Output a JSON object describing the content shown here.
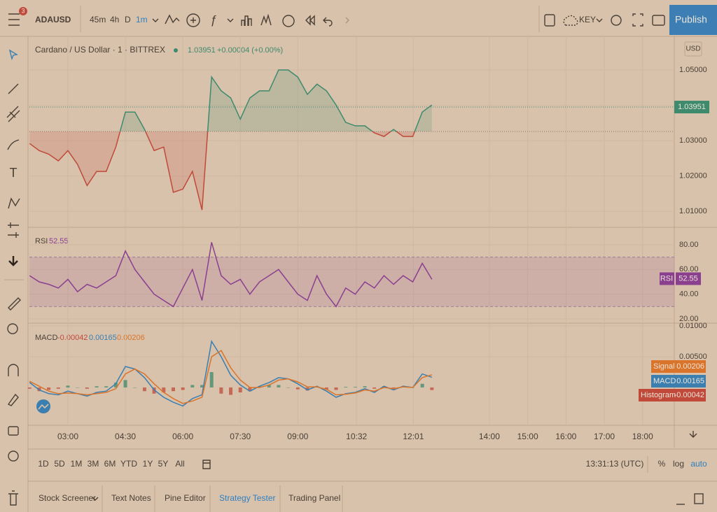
{
  "header": {
    "badge": "3",
    "symbol": "ADAUSD",
    "intervals": [
      "45m",
      "4h",
      "D",
      "1m"
    ],
    "layout": "KEY",
    "publish": "Publish"
  },
  "chart_data": [
    {
      "type": "line",
      "title": "Cardano / US Dollar · 1 · BITTREX",
      "last_value": 1.03951,
      "change": "+0.00004 (+0.00%)",
      "currency": "USD",
      "x": [
        120,
        135,
        150,
        165,
        180,
        195,
        210,
        225,
        240,
        255,
        270,
        285,
        300,
        315,
        330,
        345,
        360,
        375,
        390,
        405,
        420,
        435,
        450,
        465,
        480,
        495,
        510,
        525,
        540,
        555,
        570,
        585,
        600,
        615,
        630,
        645,
        660,
        675,
        690,
        705,
        720,
        735,
        750
      ],
      "values": [
        1.0292,
        1.0272,
        1.0262,
        1.0243,
        1.0272,
        1.0233,
        1.0173,
        1.0213,
        1.0213,
        1.0282,
        1.0381,
        1.0381,
        1.0332,
        1.0272,
        1.0282,
        1.0154,
        1.0163,
        1.0213,
        1.0104,
        1.048,
        1.0441,
        1.0421,
        1.0361,
        1.0421,
        1.0441,
        1.0441,
        1.05,
        1.05,
        1.048,
        1.0431,
        1.046,
        1.0441,
        1.0401,
        1.0352,
        1.0342,
        1.0342,
        1.0322,
        1.0312,
        1.0332,
        1.0312,
        1.0312,
        1.0381,
        1.0401
      ],
      "baseline": 1.0326,
      "color_up": "#3d8a6c",
      "color_down": "#c0493a",
      "xlim": [
        119.7,
        1129.6
      ],
      "xticks": [
        {
          "value": 180,
          "label": "03:00"
        },
        {
          "value": 270,
          "label": "04:30"
        },
        {
          "value": 360,
          "label": "06:00"
        },
        {
          "value": 450,
          "label": "07:30"
        },
        {
          "value": 540,
          "label": "09:00"
        },
        {
          "value": 632,
          "label": "10:32"
        },
        {
          "value": 721,
          "label": "12:01"
        },
        {
          "value": 840,
          "label": "14:00"
        },
        {
          "value": 900,
          "label": "15:00"
        },
        {
          "value": 960,
          "label": "16:00"
        },
        {
          "value": 1020,
          "label": "17:00"
        },
        {
          "value": 1080,
          "label": "18:00"
        }
      ],
      "ylim": [
        1.0055,
        1.0595
      ],
      "yticks": [
        {
          "value": 1.01,
          "label": "1.01000"
        },
        {
          "value": 1.02,
          "label": "1.02000"
        },
        {
          "value": 1.03,
          "label": "1.03000"
        },
        {
          "value": 1.04,
          "label": "1.04000"
        },
        {
          "value": 1.05,
          "label": "1.05000"
        }
      ],
      "grid": true
    },
    {
      "type": "line",
      "title": "RSI",
      "last_value": 52.55,
      "color": "#8a3f8f",
      "values": [
        55,
        50,
        48,
        45,
        52,
        42,
        48,
        45,
        50,
        55,
        75,
        60,
        50,
        40,
        35,
        30,
        45,
        60,
        35,
        82,
        55,
        48,
        52,
        40,
        50,
        55,
        60,
        50,
        40,
        35,
        55,
        40,
        30,
        45,
        40,
        50,
        45,
        55,
        48,
        55,
        50,
        65,
        52
      ],
      "band": [
        30,
        70
      ],
      "ylim": [
        16.6,
        94.1
      ],
      "yticks": [
        {
          "value": 20,
          "label": "20.00"
        },
        {
          "value": 40,
          "label": "40.00"
        },
        {
          "value": 60,
          "label": "60.00"
        },
        {
          "value": 80,
          "label": "80.00"
        }
      ],
      "grid": true
    },
    {
      "type": "macd",
      "title": "MACD",
      "series": [
        {
          "name": "Histogram",
          "last_value": -0.00042,
          "color": "#c0493a",
          "color_up": "#3d8a6c",
          "values": [
            -0.0002,
            -0.0006,
            -0.0004,
            -0.0002,
            0.0003,
            0.0,
            -0.0002,
            0.0002,
            0.0002,
            0.0008,
            0.0012,
            0.0,
            -0.0006,
            -0.001,
            -0.0008,
            -0.0006,
            -0.0004,
            0.0004,
            0.0004,
            0.0025,
            -0.001,
            -0.0012,
            -0.0008,
            -0.0006,
            0.0002,
            0.0004,
            0.0004,
            0.0,
            -0.0003,
            -0.0005,
            0.0001,
            -0.0003,
            -0.0004,
            0.0001,
            0.0001,
            0.0002,
            -0.0002,
            0.0002,
            -0.0002,
            0.0001,
            0.0,
            0.0006,
            -0.00042
          ]
        },
        {
          "name": "MACD",
          "last_value": 0.00165,
          "color": "#3a7fb0",
          "values": [
            0.0008,
            -0.0004,
            -0.001,
            -0.0012,
            -0.0006,
            -0.001,
            -0.0014,
            -0.0008,
            -0.0006,
            0.0006,
            0.0034,
            0.003,
            0.0016,
            -0.0004,
            -0.0016,
            -0.0024,
            -0.003,
            -0.0018,
            -0.0012,
            0.0075,
            0.005,
            0.002,
            0.0004,
            -0.0006,
            0.0002,
            0.0008,
            0.0016,
            0.0014,
            0.0006,
            -0.0004,
            0.0002,
            -0.0006,
            -0.0016,
            -0.001,
            -0.0008,
            -0.0002,
            -0.0008,
            0.0002,
            -0.0004,
            0.0002,
            0.0,
            0.0022,
            0.00165
          ]
        },
        {
          "name": "Signal",
          "last_value": 0.00206,
          "color": "#d9742a",
          "values": [
            0.001,
            0.0002,
            -0.0006,
            -0.001,
            -0.0009,
            -0.001,
            -0.0012,
            -0.001,
            -0.0008,
            -0.0002,
            0.0022,
            0.003,
            0.0022,
            0.0006,
            -0.0008,
            -0.0018,
            -0.0026,
            -0.0022,
            -0.0016,
            0.005,
            0.006,
            0.0032,
            0.0012,
            0.0,
            0.0,
            0.0004,
            0.0012,
            0.0014,
            0.0009,
            0.0001,
            0.0001,
            -0.0003,
            -0.0012,
            -0.0011,
            -0.0009,
            -0.0004,
            -0.0006,
            0.0,
            -0.0002,
            0.0001,
            0.0,
            0.0016,
            0.00206
          ]
        }
      ],
      "ylim": [
        -0.00614,
        0.01045
      ],
      "yticks": [
        {
          "value": 0.005,
          "label": "0.00500"
        },
        {
          "value": 0.01,
          "label": "0.01000"
        }
      ],
      "grid": true
    }
  ],
  "footer": {
    "ranges": [
      "1D",
      "5D",
      "1M",
      "3M",
      "6M",
      "YTD",
      "1Y",
      "5Y",
      "All"
    ],
    "clock": "13:31:13 (UTC)",
    "options": [
      "%",
      "log",
      "auto"
    ]
  },
  "tabs": [
    "Stock Screener",
    "Text Notes",
    "Pine Editor",
    "Strategy Tester",
    "Trading Panel"
  ]
}
